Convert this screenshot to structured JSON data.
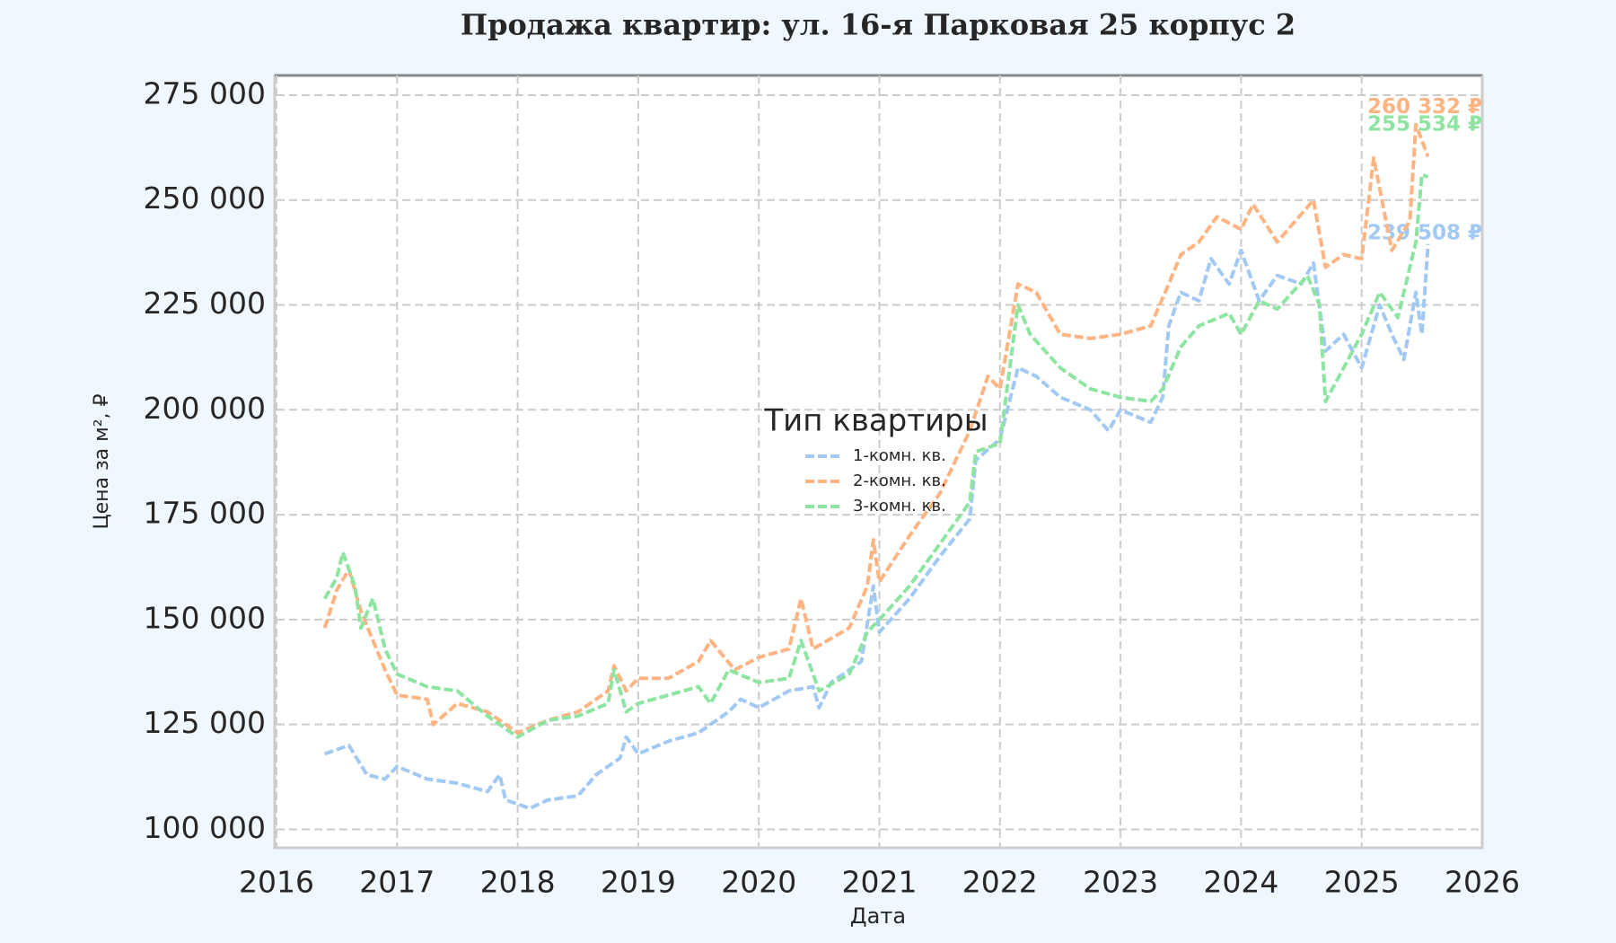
{
  "chart_data": {
    "type": "line",
    "title": "Продажа квартир: ул. 16-я Парковая 25 корпус 2",
    "x_label": "Дата",
    "y_label": "Цена за м², ₽",
    "legend_title": "Тип квартиры",
    "legend_position": "center",
    "grid": true,
    "xlim": [
      2016,
      2026
    ],
    "xticks": [
      2016,
      2017,
      2018,
      2019,
      2020,
      2021,
      2022,
      2023,
      2024,
      2025,
      2026
    ],
    "ylim": [
      95600,
      279700
    ],
    "yticks": [
      {
        "value": 100000,
        "label": "100 000"
      },
      {
        "value": 125000,
        "label": "125 000"
      },
      {
        "value": 150000,
        "label": "150 000"
      },
      {
        "value": 175000,
        "label": "175 000"
      },
      {
        "value": 200000,
        "label": "200 000"
      },
      {
        "value": 225000,
        "label": "225 000"
      },
      {
        "value": 250000,
        "label": "250 000"
      },
      {
        "value": 275000,
        "label": "275 000"
      }
    ],
    "series": [
      {
        "name": "1-комн. кв.",
        "color": "#a1c9f4",
        "x": [
          2016.4,
          2016.6,
          2016.75,
          2016.9,
          2017.0,
          2017.25,
          2017.5,
          2017.75,
          2017.85,
          2017.9,
          2018.1,
          2018.25,
          2018.5,
          2018.65,
          2018.85,
          2018.9,
          2019.0,
          2019.25,
          2019.5,
          2019.75,
          2019.85,
          2020.0,
          2020.25,
          2020.45,
          2020.5,
          2020.6,
          2020.85,
          2020.95,
          2021.0,
          2021.25,
          2021.5,
          2021.75,
          2021.8,
          2022.0,
          2022.15,
          2022.3,
          2022.5,
          2022.75,
          2022.9,
          2023.0,
          2023.25,
          2023.35,
          2023.4,
          2023.5,
          2023.65,
          2023.75,
          2023.9,
          2024.0,
          2024.15,
          2024.3,
          2024.5,
          2024.6,
          2024.7,
          2024.85,
          2025.0,
          2025.15,
          2025.25,
          2025.35,
          2025.45,
          2025.5,
          2025.55
        ],
        "values": [
          118000,
          120000,
          113000,
          112000,
          115000,
          112000,
          111000,
          109000,
          113000,
          107000,
          105000,
          107000,
          108000,
          113000,
          117000,
          122000,
          118000,
          121000,
          123000,
          128000,
          131000,
          129000,
          133000,
          134000,
          129000,
          135000,
          140000,
          158000,
          147000,
          155000,
          165000,
          174000,
          188000,
          193000,
          210000,
          208000,
          203000,
          200000,
          195000,
          200000,
          197000,
          203000,
          220000,
          228000,
          226000,
          236000,
          230000,
          238000,
          226000,
          232000,
          230000,
          235000,
          214000,
          218000,
          210000,
          225000,
          218000,
          212000,
          228000,
          218000,
          239508
        ],
        "value_labels": [
          null,
          null,
          null,
          null,
          null,
          null,
          null,
          null,
          null,
          null,
          null,
          null,
          null,
          null,
          null,
          null,
          null,
          null,
          null,
          null,
          null,
          null,
          null,
          null,
          null,
          null,
          null,
          null,
          null,
          null,
          null,
          null,
          null,
          null,
          null,
          null,
          null,
          null,
          null,
          null,
          null,
          null,
          null,
          null,
          null,
          null,
          null,
          null,
          null,
          null,
          null,
          null,
          null,
          null,
          null,
          null,
          null,
          null,
          null,
          null,
          "239 508 ₽"
        ]
      },
      {
        "name": "2-комн. кв.",
        "color": "#ffb482",
        "x": [
          2016.4,
          2016.5,
          2016.6,
          2016.7,
          2016.8,
          2016.9,
          2017.0,
          2017.25,
          2017.3,
          2017.5,
          2017.75,
          2018.0,
          2018.25,
          2018.5,
          2018.75,
          2018.8,
          2018.9,
          2019.0,
          2019.25,
          2019.5,
          2019.6,
          2019.8,
          2020.0,
          2020.25,
          2020.35,
          2020.45,
          2020.75,
          2020.9,
          2020.95,
          2021.0,
          2021.25,
          2021.5,
          2021.75,
          2021.9,
          2022.0,
          2022.15,
          2022.3,
          2022.5,
          2022.75,
          2023.0,
          2023.25,
          2023.4,
          2023.5,
          2023.65,
          2023.8,
          2024.0,
          2024.1,
          2024.3,
          2024.6,
          2024.7,
          2024.85,
          2025.0,
          2025.1,
          2025.25,
          2025.4,
          2025.45,
          2025.55
        ],
        "values": [
          148000,
          157000,
          162000,
          152000,
          145000,
          138000,
          132000,
          131000,
          125000,
          130000,
          128000,
          123000,
          126000,
          128000,
          133000,
          139000,
          133000,
          136000,
          136000,
          140000,
          145000,
          138000,
          141000,
          143000,
          155000,
          143000,
          148000,
          158000,
          169000,
          159000,
          170000,
          180000,
          195000,
          208000,
          205000,
          230000,
          228000,
          218000,
          217000,
          218000,
          220000,
          230000,
          237000,
          240000,
          246000,
          243000,
          249000,
          240000,
          250000,
          234000,
          237000,
          236000,
          260000,
          238000,
          245000,
          268000,
          260332
        ],
        "value_labels": [
          null,
          null,
          null,
          null,
          null,
          null,
          null,
          null,
          null,
          null,
          null,
          null,
          null,
          null,
          null,
          null,
          null,
          null,
          null,
          null,
          null,
          null,
          null,
          null,
          null,
          null,
          null,
          null,
          null,
          null,
          null,
          null,
          null,
          null,
          null,
          null,
          null,
          null,
          null,
          null,
          null,
          null,
          null,
          null,
          null,
          null,
          null,
          null,
          null,
          null,
          null,
          null,
          null,
          null,
          null,
          null,
          "260 332 ₽"
        ]
      },
      {
        "name": "3-комн. кв.",
        "color": "#8de5a1",
        "x": [
          2016.4,
          2016.5,
          2016.55,
          2016.65,
          2016.7,
          2016.8,
          2016.9,
          2017.0,
          2017.25,
          2017.5,
          2017.75,
          2018.0,
          2018.25,
          2018.5,
          2018.75,
          2018.8,
          2018.9,
          2019.0,
          2019.25,
          2019.5,
          2019.6,
          2019.75,
          2020.0,
          2020.25,
          2020.35,
          2020.5,
          2020.75,
          2020.9,
          2021.0,
          2021.25,
          2021.5,
          2021.75,
          2021.8,
          2022.0,
          2022.15,
          2022.25,
          2022.5,
          2022.75,
          2023.0,
          2023.25,
          2023.35,
          2023.5,
          2023.65,
          2023.9,
          2024.0,
          2024.15,
          2024.3,
          2024.55,
          2024.65,
          2024.7,
          2024.85,
          2025.0,
          2025.15,
          2025.3,
          2025.45,
          2025.5,
          2025.55
        ],
        "values": [
          155000,
          160000,
          166000,
          158000,
          148000,
          155000,
          143000,
          137000,
          134000,
          133000,
          127000,
          122000,
          126000,
          127000,
          130000,
          138000,
          128000,
          130000,
          132000,
          134000,
          130000,
          138000,
          135000,
          136000,
          145000,
          133000,
          137000,
          147000,
          150000,
          158000,
          168000,
          178000,
          190000,
          192000,
          225000,
          218000,
          210000,
          205000,
          203000,
          202000,
          205000,
          215000,
          220000,
          223000,
          218000,
          226000,
          224000,
          232000,
          225000,
          202000,
          210000,
          218000,
          228000,
          222000,
          240000,
          256000,
          255534
        ],
        "value_labels": [
          null,
          null,
          null,
          null,
          null,
          null,
          null,
          null,
          null,
          null,
          null,
          null,
          null,
          null,
          null,
          null,
          null,
          null,
          null,
          null,
          null,
          null,
          null,
          null,
          null,
          null,
          null,
          null,
          null,
          null,
          null,
          null,
          null,
          null,
          null,
          null,
          null,
          null,
          null,
          null,
          null,
          null,
          null,
          null,
          null,
          null,
          null,
          null,
          null,
          null,
          null,
          null,
          null,
          null,
          null,
          null,
          "255 534 ₽"
        ]
      }
    ]
  }
}
